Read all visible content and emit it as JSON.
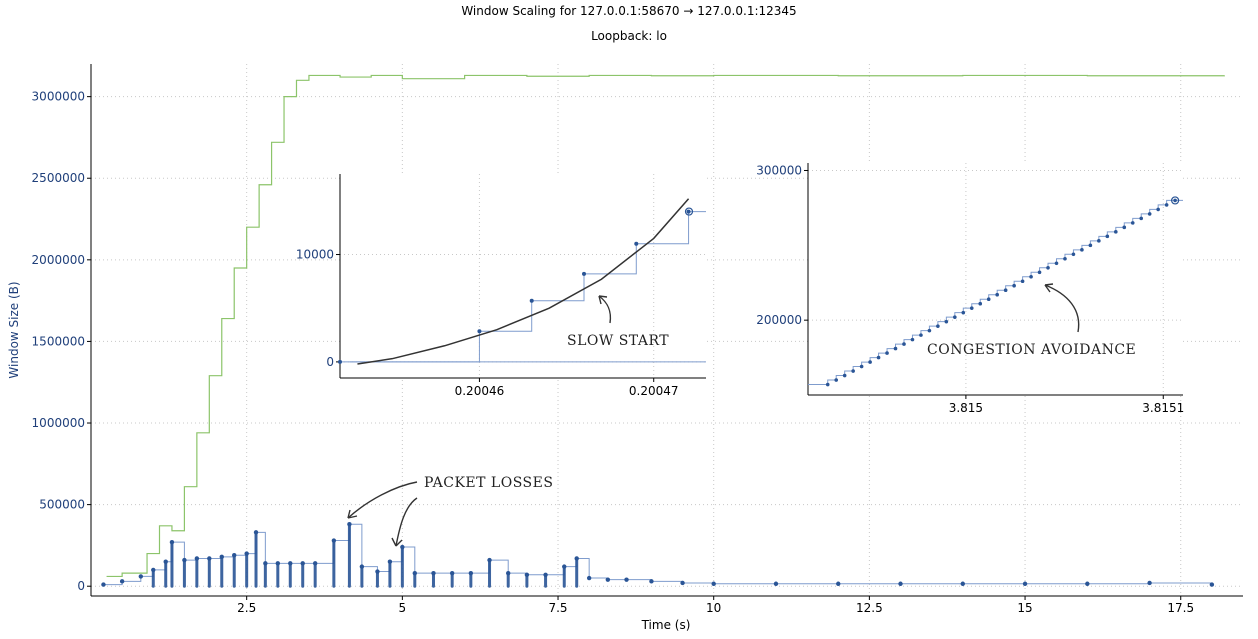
{
  "chart_data": {
    "type": "line",
    "title": "Window Scaling for 127.0.0.1:58670 → 127.0.0.1:12345",
    "subtitle": "Loopback: lo",
    "xlabel": "Time (s)",
    "ylabel": "Window Size (B)",
    "xlim": [
      0,
      18.5
    ],
    "ylim": [
      -60000,
      3200000
    ],
    "x_ticks": [
      2.5,
      5,
      7.5,
      10,
      12.5,
      15,
      17.5
    ],
    "x_tick_labels": [
      "2.5",
      "5",
      "7.5",
      "10",
      "12.5",
      "15",
      "17.5"
    ],
    "y_ticks": [
      0,
      500000,
      1000000,
      1500000,
      2000000,
      2500000,
      3000000
    ],
    "y_tick_labels": [
      "0",
      "500000",
      "1000000",
      "1500000",
      "2000000",
      "2500000",
      "3000000"
    ],
    "grid": true,
    "colors": {
      "receive_window": "#8cc46a",
      "bytes_in_flight": "#2a5596",
      "annotation": "#333333"
    },
    "series": [
      {
        "style": "step",
        "x": [
          0.25,
          0.5,
          0.9,
          1.1,
          1.3,
          1.5,
          1.7,
          1.9,
          2.1,
          2.3,
          2.5,
          2.7,
          2.9,
          3.1,
          3.3,
          3.5,
          4.0,
          4.5,
          5.0,
          6.0,
          7.0,
          8.0,
          9.0,
          10.0,
          12.0,
          14.0,
          16.0,
          18.2
        ],
        "y": [
          60000,
          80000,
          200000,
          370000,
          340000,
          610000,
          940000,
          1290000,
          1640000,
          1950000,
          2200000,
          2460000,
          2720000,
          3000000,
          3100000,
          3130000,
          3120000,
          3130000,
          3110000,
          3130000,
          3125000,
          3130000,
          3128000,
          3130000,
          3128000,
          3130000,
          3128000,
          3130000
        ]
      },
      {
        "style": "scatter-step",
        "x": [
          0.2,
          0.5,
          0.8,
          1.0,
          1.2,
          1.3,
          1.5,
          1.7,
          1.9,
          2.1,
          2.3,
          2.5,
          2.65,
          2.8,
          3.0,
          3.2,
          3.4,
          3.6,
          3.9,
          4.15,
          4.35,
          4.6,
          4.8,
          5.0,
          5.2,
          5.5,
          5.8,
          6.1,
          6.4,
          6.7,
          7.0,
          7.3,
          7.6,
          7.8,
          8.0,
          8.3,
          8.6,
          9.0,
          9.5,
          10,
          11,
          12,
          13,
          14,
          15,
          16,
          17,
          18
        ],
        "y": [
          10000,
          30000,
          60000,
          100000,
          150000,
          270000,
          160000,
          170000,
          170000,
          180000,
          190000,
          200000,
          330000,
          140000,
          140000,
          140000,
          140000,
          140000,
          280000,
          380000,
          120000,
          90000,
          150000,
          240000,
          80000,
          80000,
          80000,
          80000,
          160000,
          80000,
          70000,
          70000,
          120000,
          170000,
          50000,
          40000,
          40000,
          30000,
          20000,
          15000,
          15000,
          15000,
          15000,
          15000,
          15000,
          15000,
          20000,
          10000
        ]
      }
    ],
    "annotations": [
      {
        "text": "PACKET  LOSSES",
        "x": 5.4,
        "y": 640000
      },
      {
        "text": "SLOW  START"
      },
      {
        "text": "CONGESTION  AVOIDANCE"
      }
    ],
    "insets": [
      {
        "type": "line",
        "xlim": [
          0.200452,
          0.200473
        ],
        "ylim": [
          -1500,
          17500
        ],
        "x_ticks": [
          0.20046,
          0.20047
        ],
        "x_tick_labels": [
          "0.20046",
          "0.20047"
        ],
        "y_ticks": [
          0,
          10000
        ],
        "y_tick_labels": [
          "0",
          "10000"
        ],
        "step_x": [
          0.200452,
          0.20046,
          0.200463,
          0.200466,
          0.200469,
          0.200472,
          0.200473
        ],
        "step_y": [
          0,
          2850,
          5700,
          8200,
          11000,
          14000,
          14000
        ],
        "trend_x": [
          0.200453,
          0.200455,
          0.200458,
          0.200461,
          0.200464,
          0.200467,
          0.20047,
          0.200472
        ],
        "trend_y": [
          -200,
          300,
          1500,
          3000,
          5000,
          7700,
          11500,
          15200
        ]
      },
      {
        "type": "line",
        "xlim": [
          3.81492,
          3.81511
        ],
        "ylim": [
          150000,
          305000
        ],
        "x_ticks": [
          3.815,
          3.8151
        ],
        "x_tick_labels": [
          "3.815",
          "3.8151"
        ],
        "y_ticks": [
          200000,
          300000
        ],
        "y_tick_labels": [
          "200000",
          "300000"
        ],
        "start": [
          3.81493,
          157000
        ],
        "end": [
          3.815106,
          280000
        ],
        "points": 42
      }
    ]
  }
}
